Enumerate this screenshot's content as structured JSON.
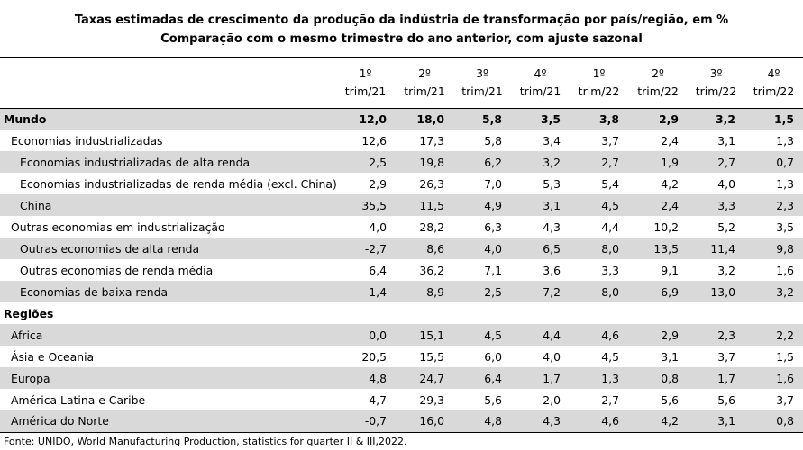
{
  "title": {
    "line1": "Taxas estimadas de crescimento da produção da indústria de transformação por país/região, em %",
    "line2": "Comparação com o mesmo trimestre do ano anterior, com ajuste sazonal"
  },
  "columns": [
    {
      "top": "1º",
      "bottom": "trim/21"
    },
    {
      "top": "2º",
      "bottom": "trim/21"
    },
    {
      "top": "3º",
      "bottom": "trim/21"
    },
    {
      "top": "4º",
      "bottom": "trim/21"
    },
    {
      "top": "1º",
      "bottom": "trim/22"
    },
    {
      "top": "2º",
      "bottom": "trim/22"
    },
    {
      "top": "3º",
      "bottom": "trim/22"
    },
    {
      "top": "4º",
      "bottom": "trim/22"
    }
  ],
  "rows": [
    {
      "label": "Mundo",
      "level": 0,
      "bold": true,
      "shade": true,
      "values": [
        "12,0",
        "18,0",
        "5,8",
        "3,5",
        "3,8",
        "2,9",
        "3,2",
        "1,5"
      ]
    },
    {
      "label": "Economias industrializadas",
      "level": 1,
      "shade": false,
      "values": [
        "12,6",
        "17,3",
        "5,8",
        "3,4",
        "3,7",
        "2,4",
        "3,1",
        "1,3"
      ]
    },
    {
      "label": "Economias industrializadas de alta renda",
      "level": 2,
      "shade": true,
      "values": [
        "2,5",
        "19,8",
        "6,2",
        "3,2",
        "2,7",
        "1,9",
        "2,7",
        "0,7"
      ]
    },
    {
      "label": "Economias industrializadas de renda média (excl. China)",
      "level": 2,
      "shade": false,
      "values": [
        "2,9",
        "26,3",
        "7,0",
        "5,3",
        "5,4",
        "4,2",
        "4,0",
        "1,3"
      ]
    },
    {
      "label": "China",
      "level": 2,
      "shade": true,
      "values": [
        "35,5",
        "11,5",
        "4,9",
        "3,1",
        "4,5",
        "2,4",
        "3,3",
        "2,3"
      ]
    },
    {
      "label": "Outras economias em industrialização",
      "level": 1,
      "shade": false,
      "values": [
        "4,0",
        "28,2",
        "6,3",
        "4,3",
        "4,4",
        "10,2",
        "5,2",
        "3,5"
      ]
    },
    {
      "label": "Outras economias de alta renda",
      "level": 2,
      "shade": true,
      "values": [
        "-2,7",
        "8,6",
        "4,0",
        "6,5",
        "8,0",
        "13,5",
        "11,4",
        "9,8"
      ]
    },
    {
      "label": "Outras economias de renda média",
      "level": 2,
      "shade": false,
      "values": [
        "6,4",
        "36,2",
        "7,1",
        "3,6",
        "3,3",
        "9,1",
        "3,2",
        "1,6"
      ]
    },
    {
      "label": "Economias de baixa renda",
      "level": 2,
      "shade": true,
      "values": [
        "-1,4",
        "8,9",
        "-2,5",
        "7,2",
        "8,0",
        "6,9",
        "13,0",
        "3,2"
      ]
    },
    {
      "label": "Regiões",
      "level": 0,
      "bold": true,
      "shade": false,
      "values": []
    },
    {
      "label": "Africa",
      "level": 1,
      "shade": true,
      "values": [
        "0,0",
        "15,1",
        "4,5",
        "4,4",
        "4,6",
        "2,9",
        "2,3",
        "2,2"
      ]
    },
    {
      "label": "Ásia e Oceania",
      "level": 1,
      "shade": false,
      "values": [
        "20,5",
        "15,5",
        "6,0",
        "4,0",
        "4,5",
        "3,1",
        "3,7",
        "1,5"
      ]
    },
    {
      "label": "Europa",
      "level": 1,
      "shade": true,
      "values": [
        "4,8",
        "24,7",
        "6,4",
        "1,7",
        "1,3",
        "0,8",
        "1,7",
        "1,6"
      ]
    },
    {
      "label": "América Latina e Caribe",
      "level": 1,
      "shade": false,
      "values": [
        "4,7",
        "29,3",
        "5,6",
        "2,0",
        "2,7",
        "5,6",
        "5,6",
        "3,7"
      ]
    },
    {
      "label": "América do Norte",
      "level": 1,
      "shade": true,
      "values": [
        "-0,7",
        "16,0",
        "4,8",
        "4,3",
        "4,6",
        "4,2",
        "3,1",
        "0,8"
      ]
    }
  ],
  "source": "Fonte: UNIDO, World Manufacturing Production, statistics for quarter II & III,2022."
}
